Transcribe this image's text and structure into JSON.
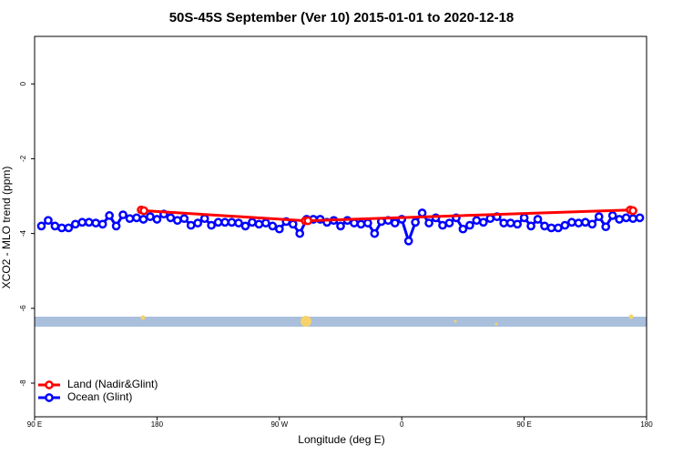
{
  "chart_data": {
    "type": "line",
    "title": "50S-45S September (Ver 10)   2015-01-01 to 2020-12-18",
    "xlabel": "Longitude (deg E)",
    "ylabel": "XCO2 - MLO trend (ppm)",
    "xlim": [
      90,
      540
    ],
    "ylim": [
      -8.9,
      1.27
    ],
    "xticks": [
      {
        "value": 90,
        "label": "90 E"
      },
      {
        "value": 180,
        "label": "180"
      },
      {
        "value": 270,
        "label": "90 W"
      },
      {
        "value": 360,
        "label": "0"
      },
      {
        "value": 450,
        "label": "90 E"
      },
      {
        "value": 540,
        "label": "180"
      }
    ],
    "yticks": [
      0,
      -2,
      -4,
      -6,
      -8
    ],
    "legend": "bottom-left",
    "series": [
      {
        "name": "Land (Nadir&Glint)",
        "color": "#ff0000",
        "x": [
          168.4,
          170.4,
          289,
          291,
          528,
          530
        ],
        "values": [
          -3.37,
          -3.39,
          -3.66,
          -3.66,
          -3.37,
          -3.39
        ]
      },
      {
        "name": "Ocean (Glint)",
        "color": "#0000ff",
        "x": [
          95,
          100,
          105,
          110,
          115,
          120,
          125,
          130,
          135,
          140,
          145,
          150,
          155,
          160,
          165,
          170,
          175,
          180,
          185,
          190,
          195,
          200,
          205,
          210,
          215,
          220,
          225,
          230,
          235,
          240,
          245,
          250,
          255,
          260,
          265,
          270,
          275,
          280,
          285,
          290,
          295,
          300,
          305,
          310,
          315,
          320,
          325,
          330,
          335,
          340,
          345,
          350,
          355,
          360,
          365,
          370,
          375,
          380,
          385,
          390,
          395,
          400,
          405,
          410,
          415,
          420,
          425,
          430,
          435,
          440,
          445,
          450,
          455,
          460,
          465,
          470,
          475,
          480,
          485,
          490,
          495,
          500,
          505,
          510,
          515,
          520,
          525,
          530,
          535
        ],
        "values": [
          -3.8,
          -3.65,
          -3.8,
          -3.85,
          -3.85,
          -3.75,
          -3.7,
          -3.7,
          -3.72,
          -3.75,
          -3.52,
          -3.8,
          -3.5,
          -3.6,
          -3.58,
          -3.62,
          -3.55,
          -3.62,
          -3.48,
          -3.58,
          -3.65,
          -3.6,
          -3.78,
          -3.72,
          -3.6,
          -3.78,
          -3.7,
          -3.7,
          -3.7,
          -3.72,
          -3.8,
          -3.7,
          -3.75,
          -3.72,
          -3.8,
          -3.88,
          -3.68,
          -3.75,
          -4.0,
          -3.62,
          -3.62,
          -3.62,
          -3.7,
          -3.65,
          -3.8,
          -3.65,
          -3.72,
          -3.75,
          -3.72,
          -4.0,
          -3.68,
          -3.65,
          -3.72,
          -3.62,
          -4.2,
          -3.7,
          -3.45,
          -3.72,
          -3.58,
          -3.78,
          -3.72,
          -3.58,
          -3.88,
          -3.78,
          -3.65,
          -3.7,
          -3.6,
          -3.55,
          -3.72,
          -3.72,
          -3.75,
          -3.58,
          -3.8,
          -3.62,
          -3.8,
          -3.85,
          -3.85,
          -3.78,
          -3.7,
          -3.72,
          -3.7,
          -3.75,
          -3.55,
          -3.82,
          -3.52,
          -3.62,
          -3.58,
          -3.6,
          -3.58
        ]
      }
    ]
  }
}
